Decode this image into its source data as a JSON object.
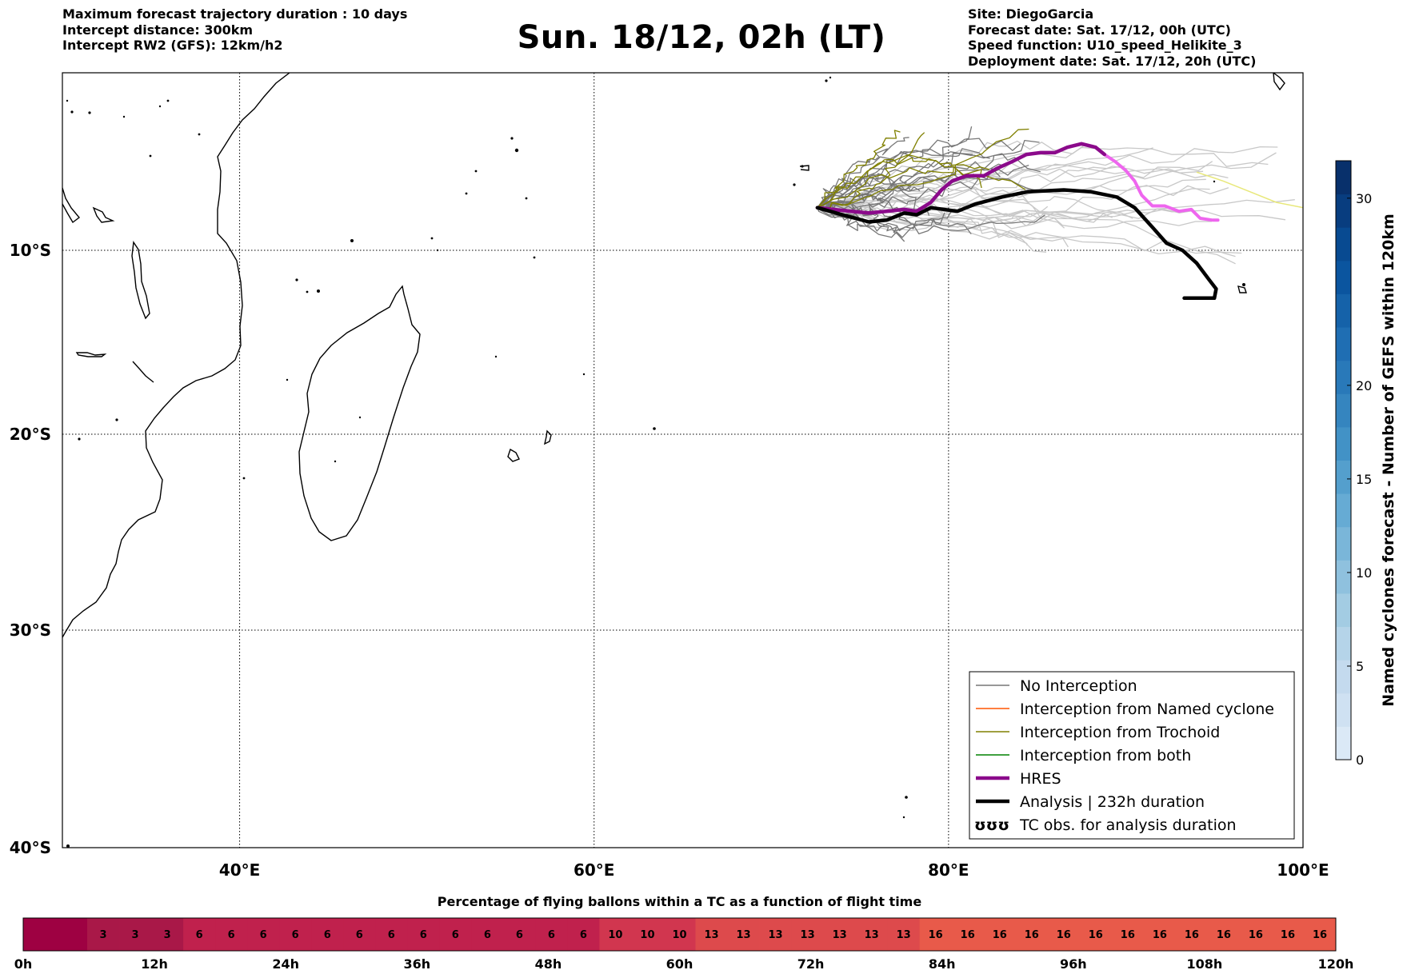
{
  "header": {
    "left_lines": [
      "Maximum forecast trajectory duration : 10 days",
      "Intercept distance: 300km",
      "Intercept RW2 (GFS):  12km/h2"
    ],
    "title": "Sun. 18/12, 02h (LT)",
    "right_lines": [
      "Site: DiegoGarcia",
      "Forecast date: Sat. 17/12, 00h (UTC)",
      "Speed function: U10_speed_Helikite_3",
      "Deployment date: Sat. 17/12, 20h (UTC)"
    ]
  },
  "map": {
    "lon_range": [
      30,
      100
    ],
    "lat_range": [
      -40,
      0
    ],
    "lon_tick_labels": [
      {
        "lon": 40,
        "label": "40°E"
      },
      {
        "lon": 60,
        "label": "60°E"
      },
      {
        "lon": 80,
        "label": "80°E"
      },
      {
        "lon": 100,
        "label": "100°E"
      }
    ],
    "lat_tick_labels": [
      {
        "lat": -10,
        "label": "10°S"
      },
      {
        "lat": -20,
        "label": "20°S"
      },
      {
        "lat": -30,
        "label": "30°S"
      },
      {
        "lat": -40,
        "label": "40°S"
      }
    ],
    "gridlines": "dotted",
    "colors": {
      "no_interception": "#777777",
      "no_interception_light": "#c8c8c8",
      "named_cyclone": "#ff5500",
      "trochoid": "#808000",
      "both": "#008000",
      "hres": "#8b0a8b",
      "hres_tail": "#ee66ee",
      "analysis": "#000000",
      "yellow_member": "#e8e87a"
    },
    "tracks": {
      "analysis": [
        [
          72.6,
          -7.6
        ],
        [
          74,
          -8.0
        ],
        [
          75.5,
          -8.4
        ],
        [
          76.5,
          -8.3
        ],
        [
          77.5,
          -7.9
        ],
        [
          78.2,
          -8.0
        ],
        [
          79,
          -7.6
        ],
        [
          80.5,
          -7.8
        ],
        [
          81.5,
          -7.4
        ],
        [
          83,
          -7.0
        ],
        [
          84.5,
          -6.7
        ],
        [
          86.5,
          -6.6
        ],
        [
          88,
          -6.7
        ],
        [
          89.5,
          -7.0
        ],
        [
          90.5,
          -7.6
        ],
        [
          91.5,
          -8.7
        ],
        [
          92.3,
          -9.6
        ],
        [
          93.2,
          -10.0
        ],
        [
          94.0,
          -10.7
        ],
        [
          94.7,
          -11.6
        ],
        [
          95.1,
          -12.1
        ],
        [
          95.0,
          -12.6
        ],
        [
          94.5,
          -12.6
        ],
        [
          93.3,
          -12.6
        ]
      ],
      "hres": [
        [
          72.6,
          -7.6
        ],
        [
          73.5,
          -7.7
        ],
        [
          74.5,
          -7.8
        ],
        [
          75.5,
          -7.9
        ],
        [
          76.5,
          -7.8
        ],
        [
          77.5,
          -7.7
        ],
        [
          78.2,
          -7.8
        ],
        [
          79.0,
          -7.3
        ],
        [
          79.6,
          -6.6
        ],
        [
          80.2,
          -6.1
        ],
        [
          81.0,
          -5.8
        ],
        [
          82.0,
          -5.8
        ],
        [
          82.7,
          -5.4
        ],
        [
          83.6,
          -5.0
        ],
        [
          84.4,
          -4.6
        ],
        [
          85.2,
          -4.5
        ],
        [
          86.0,
          -4.5
        ],
        [
          86.7,
          -4.2
        ],
        [
          87.5,
          -4.0
        ],
        [
          88.3,
          -4.2
        ],
        [
          88.8,
          -4.6
        ]
      ],
      "hres_tail": [
        [
          88.8,
          -4.6
        ],
        [
          89.4,
          -5.0
        ],
        [
          90.0,
          -5.5
        ],
        [
          90.5,
          -6.1
        ],
        [
          90.9,
          -6.9
        ],
        [
          91.5,
          -7.5
        ],
        [
          92.2,
          -7.5
        ],
        [
          93.0,
          -7.8
        ],
        [
          93.7,
          -7.7
        ],
        [
          94.2,
          -8.2
        ],
        [
          94.9,
          -8.3
        ],
        [
          95.2,
          -8.3
        ]
      ],
      "yellow": [
        [
          94.0,
          -5.6
        ],
        [
          95.5,
          -6.1
        ],
        [
          97,
          -6.7
        ],
        [
          98.5,
          -7.3
        ],
        [
          100,
          -7.6
        ]
      ],
      "origin": [
        72.6,
        -7.6
      ]
    },
    "legend": [
      {
        "label": "No Interception",
        "style": "thin",
        "color": "#777777"
      },
      {
        "label": "Interception from Named cyclone",
        "style": "thin",
        "color": "#ff5500"
      },
      {
        "label": "Interception from Trochoid",
        "style": "thin",
        "color": "#808000"
      },
      {
        "label": "Interception from both",
        "style": "thin",
        "color": "#008000"
      },
      {
        "label": "HRES",
        "style": "thick",
        "color": "#8b0a8b"
      },
      {
        "label": "Analysis | 232h duration",
        "style": "thick",
        "color": "#000000"
      },
      {
        "label": "TC obs. for analysis duration",
        "style": "symbol",
        "symbol": "ʊʊʊ"
      }
    ]
  },
  "colorbar": {
    "title": "Named cyclones forecast - Number of GEFS within 120km",
    "range": [
      0,
      32
    ],
    "ticks": [
      0,
      5,
      10,
      15,
      20,
      30
    ],
    "colors": [
      "#dbe9f6",
      "#cfe1f2",
      "#c4daee",
      "#b5d4e9",
      "#a3cce3",
      "#8fc1de",
      "#7ab6d9",
      "#66abd4",
      "#549fcd",
      "#4292c6",
      "#3585bf",
      "#2979b9",
      "#1f6eb3",
      "#1562a9",
      "#0b559f",
      "#084a91",
      "#083d7f",
      "#08306b"
    ]
  },
  "strip": {
    "title": "Percentage of flying ballons within a TC as a function of flight time",
    "values": [
      "",
      "",
      "3",
      "3",
      "3",
      "6",
      "6",
      "6",
      "6",
      "6",
      "6",
      "6",
      "6",
      "6",
      "6",
      "6",
      "6",
      "6",
      "10",
      "10",
      "10",
      "13",
      "13",
      "13",
      "13",
      "13",
      "13",
      "13",
      "16",
      "16",
      "16",
      "16",
      "16",
      "16",
      "16",
      "16",
      "16",
      "16",
      "16",
      "16",
      "16"
    ],
    "cell_colors_by_value": {
      "": "#9e0142",
      "3": "#a91848",
      "6": "#c0214d",
      "10": "#d1364f",
      "13": "#dd4a4c",
      "16": "#e85a4a"
    },
    "hour_labels": [
      "0h",
      "12h",
      "24h",
      "36h",
      "48h",
      "60h",
      "72h",
      "84h",
      "96h",
      "108h",
      "120h"
    ]
  }
}
